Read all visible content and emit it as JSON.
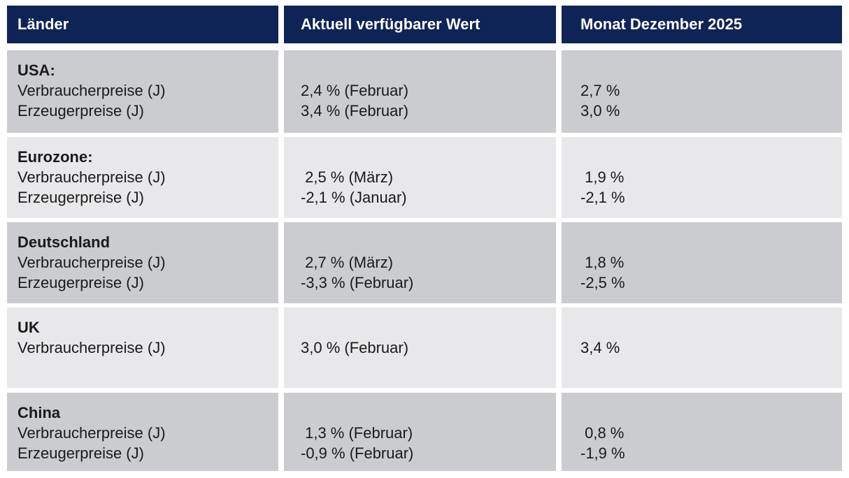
{
  "colors": {
    "header_bg": "#0e2356",
    "header_text": "#ffffff",
    "row_dark": "#cbccd0",
    "row_light": "#e8e8ea",
    "body_text": "#1a1a1a",
    "page_bg": "#ffffff"
  },
  "table": {
    "header": [
      "Länder",
      "Aktuell verfügbarer Wert",
      "Monat Dezember 2025"
    ],
    "rows": [
      {
        "country": "USA:",
        "items": [
          {
            "label": "Verbraucherpreise (J)",
            "current": "2,4 % (Februar)",
            "december": "2,7 %"
          },
          {
            "label": "Erzeugerpreise (J)",
            "current": "3,4 % (Februar)",
            "december": "3,0 %"
          }
        ]
      },
      {
        "country": "Eurozone:",
        "items": [
          {
            "label": "Verbraucherpreise (J)",
            "current": " 2,5 % (März)",
            "december": " 1,9 %"
          },
          {
            "label": "Erzeugerpreise (J)",
            "current": "-2,1 % (Januar)",
            "december": "-2,1 %"
          }
        ]
      },
      {
        "country": "Deutschland",
        "items": [
          {
            "label": "Verbraucherpreise (J)",
            "current": " 2,7 % (März)",
            "december": " 1,8 %"
          },
          {
            "label": "Erzeugerpreise (J)",
            "current": "-3,3 % (Februar)",
            "december": "-2,5 %"
          }
        ]
      },
      {
        "country": "UK",
        "items": [
          {
            "label": "Verbraucherpreise (J)",
            "current": "3,0 % (Februar)",
            "december": "3,4 %"
          }
        ]
      },
      {
        "country": "China",
        "items": [
          {
            "label": "Verbraucherpreise (J)",
            "current": " 1,3 % (Februar)",
            "december": " 0,8 %"
          },
          {
            "label": "Erzeugerpreise (J)",
            "current": "-0,9 % (Februar)",
            "december": "-1,9 %"
          }
        ]
      }
    ]
  }
}
